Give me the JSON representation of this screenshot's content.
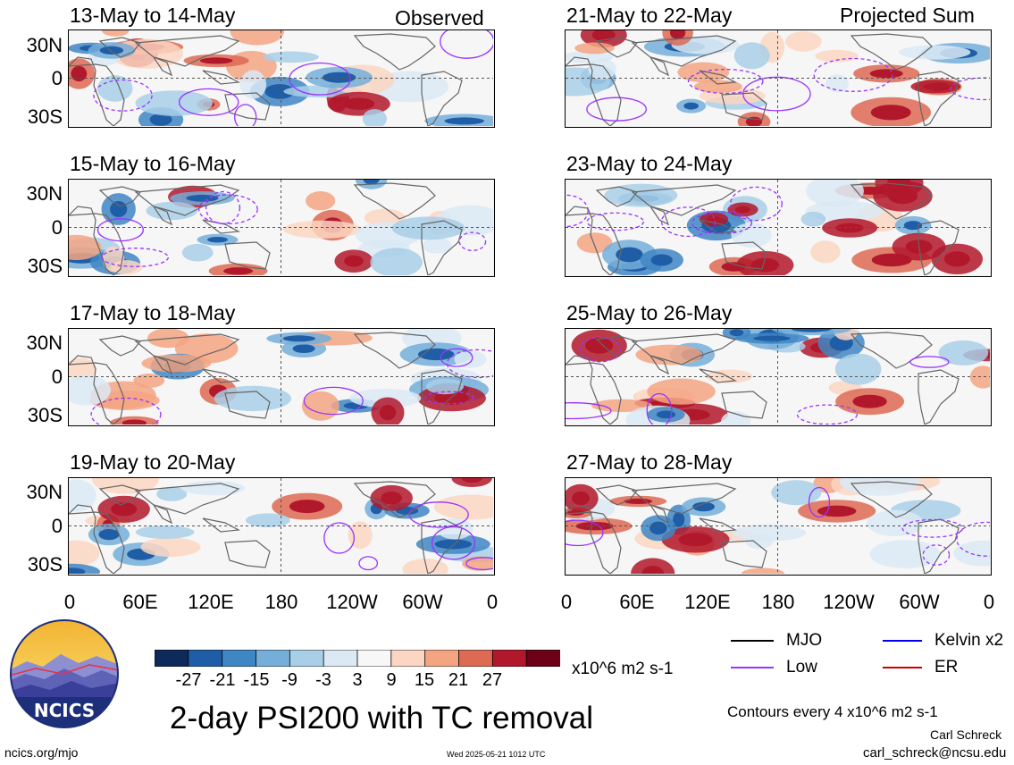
{
  "chart_data": {
    "type": "heatmap",
    "title": "2-day PSI200 with TC removal",
    "colorbar": {
      "unit": "x10^6 m2 s-1",
      "ticks": [
        "-27",
        "-21",
        "-15",
        "-9",
        "-3",
        "3",
        "9",
        "15",
        "21",
        "27"
      ],
      "colors": [
        "#0e2a5a",
        "#1f5ea6",
        "#3f86c4",
        "#74aed9",
        "#a9cfe8",
        "#dbe9f4",
        "#f7f7f7",
        "#fbd6c2",
        "#f3a582",
        "#dd6a53",
        "#b2182b",
        "#6b0016"
      ]
    },
    "lat_labels": [
      "30N",
      "0",
      "30S"
    ],
    "lon_labels": [
      "0",
      "60E",
      "120E",
      "180",
      "120W",
      "60W",
      "0"
    ],
    "left_column": {
      "header": "Observed",
      "panels": [
        "13-May to 14-May",
        "15-May to 16-May",
        "17-May to 18-May",
        "19-May to 20-May"
      ]
    },
    "right_column": {
      "header": "Projected Sum",
      "panels": [
        "21-May to 22-May",
        "23-May to 24-May",
        "25-May to 26-May",
        "27-May to 28-May"
      ]
    },
    "contour_legend": [
      {
        "label": "MJO",
        "color": "#000000"
      },
      {
        "label": "Kelvin x2",
        "color": "#0000ee"
      },
      {
        "label": "Low",
        "color": "#9933ff"
      },
      {
        "label": "ER",
        "color": "#cc0000"
      }
    ],
    "contour_note": "Contours every 4 x10^6 m2 s-1"
  },
  "logo_text": "NCICS",
  "footer": {
    "left": "ncics.org/mjo",
    "center": "Wed 2025-05-21 1012 UTC",
    "author": "Carl Schreck",
    "email": "carl_schreck@ncsu.edu"
  }
}
